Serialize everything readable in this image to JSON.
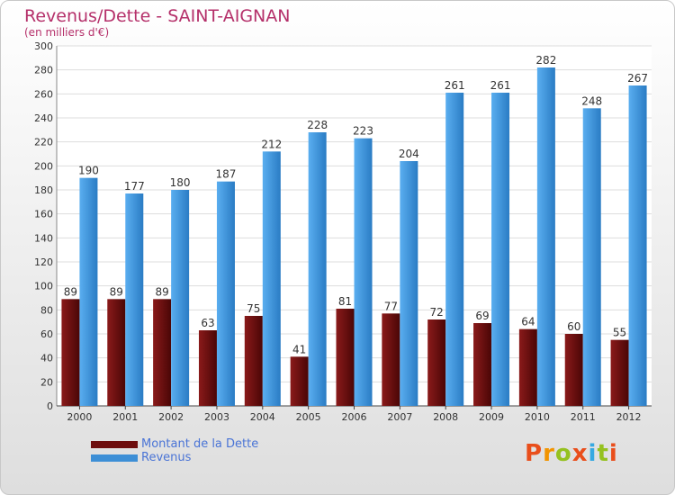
{
  "title": "Revenus/Dette - SAINT-AIGNAN",
  "subtitle": "(en milliers d'€)",
  "logo_text": "Proxiti",
  "colors": {
    "debt": "#6e0d0d",
    "revenue": "#3d8fd6",
    "title": "#b5306a",
    "legend_text": "#4a74d6"
  },
  "chart_data": {
    "type": "bar",
    "title": "Revenus/Dette - SAINT-AIGNAN",
    "subtitle": "(en milliers d'€)",
    "categories": [
      "2000",
      "2001",
      "2002",
      "2003",
      "2004",
      "2005",
      "2006",
      "2007",
      "2008",
      "2009",
      "2010",
      "2011",
      "2012"
    ],
    "series": [
      {
        "name": "Montant de la Dette",
        "values": [
          89,
          89,
          89,
          63,
          75,
          41,
          81,
          77,
          72,
          69,
          64,
          60,
          55
        ]
      },
      {
        "name": "Revenus",
        "values": [
          190,
          177,
          180,
          187,
          212,
          228,
          223,
          204,
          261,
          261,
          282,
          248,
          267
        ]
      }
    ],
    "ylim": [
      0,
      300
    ],
    "yticks": [
      0,
      20,
      40,
      60,
      80,
      100,
      120,
      140,
      160,
      180,
      200,
      220,
      240,
      260,
      280,
      300
    ],
    "grid": true,
    "legend": "bottom-left"
  }
}
